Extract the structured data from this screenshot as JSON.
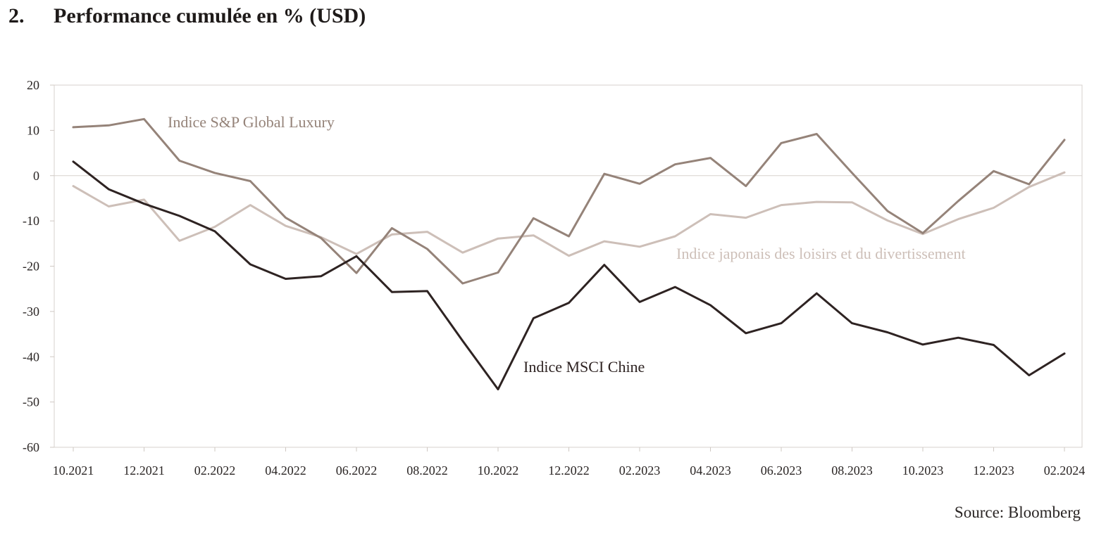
{
  "heading": {
    "number": "2.",
    "title": "Performance cumulée en % (USD)"
  },
  "source": "Source: Bloomberg",
  "chart_data": {
    "type": "line",
    "title": "Performance cumulée en % (USD)",
    "xlabel": "",
    "ylabel": "",
    "ylim": [
      -60,
      20
    ],
    "yticks": [
      20,
      10,
      0,
      -10,
      -20,
      -30,
      -40,
      -50,
      -60
    ],
    "x_tick_labels": [
      "10.2021",
      "12.2021",
      "02.2022",
      "04.2022",
      "06.2022",
      "08.2022",
      "10.2022",
      "12.2022",
      "02.2023",
      "04.2023",
      "06.2023",
      "08.2023",
      "10.2023",
      "12.2023",
      "02.2024"
    ],
    "categories": [
      "10.2021",
      "11.2021",
      "12.2021",
      "01.2022",
      "02.2022",
      "03.2022",
      "04.2022",
      "05.2022",
      "06.2022",
      "07.2022",
      "08.2022",
      "09.2022",
      "10.2022",
      "11.2022",
      "12.2022",
      "01.2023",
      "02.2023",
      "03.2023",
      "04.2023",
      "05.2023",
      "06.2023",
      "07.2023",
      "08.2023",
      "09.2023",
      "10.2023",
      "11.2023",
      "12.2023",
      "01.2024",
      "02.2024"
    ],
    "grid": false,
    "zero_line": true,
    "series": [
      {
        "name": "Indice S&P Global Luxury",
        "color": "#958379",
        "values": [
          10.7,
          11.1,
          12.5,
          3.3,
          0.6,
          -1.2,
          -9.3,
          -13.8,
          -21.5,
          -11.6,
          -16.2,
          -23.8,
          -21.4,
          -9.4,
          -13.4,
          0.4,
          -1.8,
          2.5,
          3.9,
          -2.3,
          7.2,
          9.2,
          0.6,
          -7.8,
          -12.7,
          -5.6,
          1.0,
          -1.9,
          7.9
        ]
      },
      {
        "name": "Indice japonais des loisirs et du divertissement",
        "color": "#cdbfb8",
        "values": [
          -2.3,
          -6.8,
          -5.3,
          -14.4,
          -11.3,
          -6.5,
          -11.1,
          -13.6,
          -17.3,
          -13.0,
          -12.4,
          -17.0,
          -13.9,
          -13.2,
          -17.7,
          -14.5,
          -15.7,
          -13.4,
          -8.5,
          -9.3,
          -6.5,
          -5.8,
          -5.9,
          -9.9,
          -12.9,
          -9.6,
          -7.1,
          -2.5,
          0.7
        ]
      },
      {
        "name": "Indice MSCI Chine",
        "color": "#2e2322",
        "values": [
          3.1,
          -3.0,
          -6.2,
          -8.9,
          -12.3,
          -19.6,
          -22.8,
          -22.2,
          -17.8,
          -25.7,
          -25.5,
          -36.5,
          -47.2,
          -31.5,
          -28.1,
          -19.7,
          -27.9,
          -24.6,
          -28.6,
          -34.8,
          -32.6,
          -26.0,
          -32.6,
          -34.6,
          -37.3,
          -35.8,
          -37.4,
          -44.1,
          -39.3
        ]
      }
    ]
  }
}
